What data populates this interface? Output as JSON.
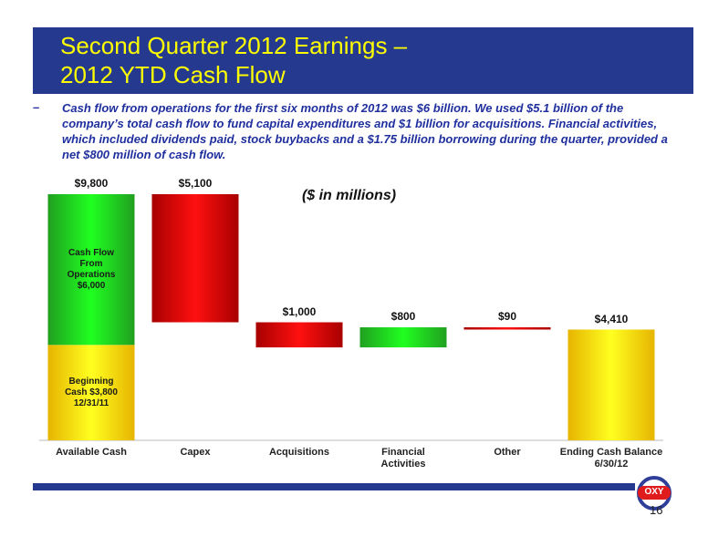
{
  "header": {
    "title": "Second Quarter 2012 Earnings –\n2012 YTD Cash Flow"
  },
  "bullet": {
    "marker": "–",
    "text": "Cash flow from operations for the first six months of 2012 was $6 billion.  We used $5.1 billion of the company’s total cash flow to fund capital expenditures and $1 billion for acquisitions.  Financial activities, which included dividends paid, stock buybacks and a $1.75 billion borrowing during the quarter, provided a net $800 million of cash flow."
  },
  "chart_data": {
    "type": "waterfall",
    "subtitle": "($ in millions)",
    "categories": [
      "Available Cash",
      "Capex",
      "Acquisitions",
      "Financial\nActivities",
      "Other",
      "Ending Cash Balance\n6/30/12"
    ],
    "values": [
      9800,
      5100,
      1000,
      800,
      90,
      4410
    ],
    "value_labels": [
      "$9,800",
      "$5,100",
      "$1,000",
      "$800",
      "$90",
      "$4,410"
    ],
    "steps": [
      "total",
      "down",
      "down",
      "up",
      "down",
      "total"
    ],
    "colors": {
      "total": [
        "#e6b400",
        "#ffff20"
      ],
      "down": [
        "#a80000",
        "#ff1010"
      ],
      "up": [
        "#20a020",
        "#20ff20"
      ]
    },
    "components": [
      {
        "label": "Beginning\nCash $3,800\n12/31/11",
        "value": 3800,
        "step": "total"
      },
      {
        "label": "Cash Flow\nFrom\nOperations\n$6,000",
        "value": 6000,
        "step": "up"
      }
    ],
    "ylim": [
      0,
      9800
    ]
  },
  "footer": {
    "logo": "OXY",
    "page": "16"
  }
}
